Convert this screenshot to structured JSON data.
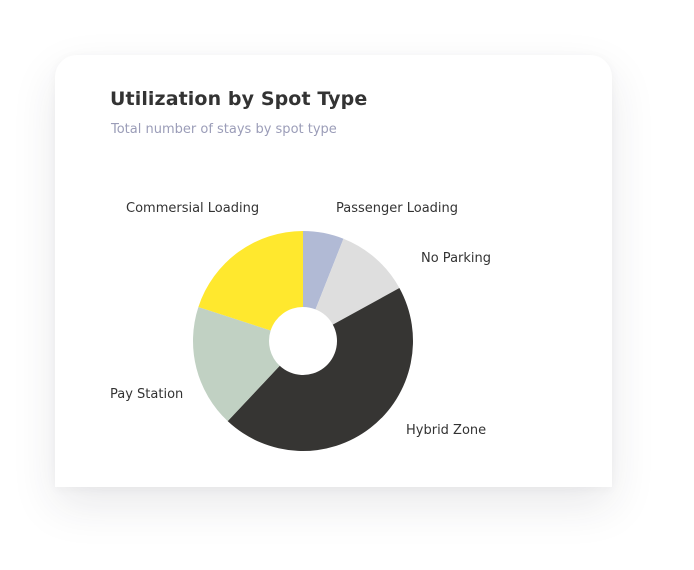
{
  "card": {
    "title": "Utilization by Spot Type",
    "subtitle": "Total number of stays by spot type"
  },
  "chart_data": {
    "type": "pie",
    "title": "Utilization by Spot Type",
    "subtitle": "Total number of stays by spot type",
    "donut": true,
    "start_angle_deg": 0,
    "direction": "clockwise",
    "slices": [
      {
        "label": "Passenger Loading",
        "value": 6,
        "color": "#b1bad5"
      },
      {
        "label": "No Parking",
        "value": 11,
        "color": "#dedede"
      },
      {
        "label": "Hybrid Zone",
        "value": 45,
        "color": "#363533"
      },
      {
        "label": "Pay Station",
        "value": 18,
        "color": "#c1d1c3"
      },
      {
        "label": "Commersial Loading",
        "value": 20,
        "color": "#ffe82e"
      }
    ]
  }
}
